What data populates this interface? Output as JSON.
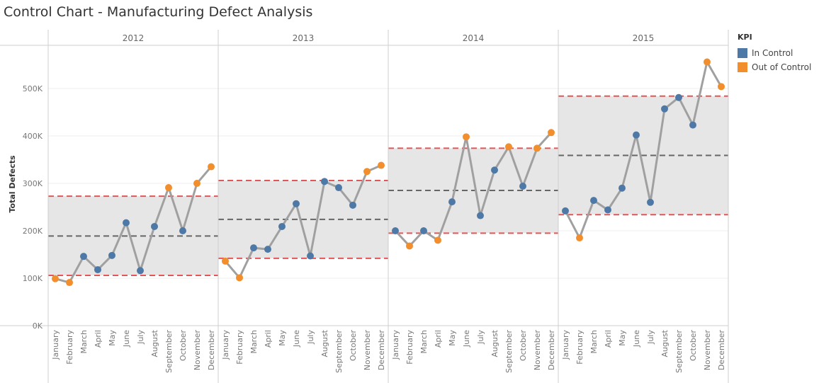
{
  "chart_data": {
    "type": "line",
    "title": "Control Chart - Manufacturing Defect Analysis",
    "ylabel": "Total Defects",
    "ylim": [
      0,
      600000
    ],
    "y_ticks": [
      {
        "value": 0,
        "label": "0K"
      },
      {
        "value": 100000,
        "label": "100K"
      },
      {
        "value": 200000,
        "label": "200K"
      },
      {
        "value": 300000,
        "label": "300K"
      },
      {
        "value": 400000,
        "label": "400K"
      },
      {
        "value": 500000,
        "label": "500K"
      }
    ],
    "months": [
      "January",
      "February",
      "March",
      "April",
      "May",
      "June",
      "July",
      "August",
      "September",
      "October",
      "November",
      "December"
    ],
    "legend": {
      "title": "KPI",
      "position": "right",
      "items": [
        {
          "label": "In Control",
          "color": "#4e79a7"
        },
        {
          "label": "Out of Control",
          "color": "#f28e2b"
        }
      ]
    },
    "line_color": "#a0a0a0",
    "band_color": "#e6e6e6",
    "limit_color": "#e15759",
    "mean_color": "#666666",
    "panels": [
      {
        "year": "2012",
        "mean": 189000,
        "upper": 273000,
        "lower": 106000,
        "values": [
          99000,
          91000,
          146000,
          118000,
          148000,
          217000,
          116000,
          209000,
          291000,
          200000,
          300000,
          335000
        ],
        "status": [
          "Out of Control",
          "Out of Control",
          "In Control",
          "In Control",
          "In Control",
          "In Control",
          "In Control",
          "In Control",
          "Out of Control",
          "In Control",
          "Out of Control",
          "Out of Control"
        ]
      },
      {
        "year": "2013",
        "mean": 224000,
        "upper": 306000,
        "lower": 142000,
        "values": [
          136000,
          101000,
          164000,
          161000,
          209000,
          257000,
          147000,
          304000,
          291000,
          254000,
          325000,
          338000
        ],
        "status": [
          "Out of Control",
          "Out of Control",
          "In Control",
          "In Control",
          "In Control",
          "In Control",
          "In Control",
          "In Control",
          "In Control",
          "In Control",
          "Out of Control",
          "Out of Control"
        ]
      },
      {
        "year": "2014",
        "mean": 285000,
        "upper": 374000,
        "lower": 195000,
        "values": [
          200000,
          168000,
          200000,
          180000,
          261000,
          398000,
          232000,
          328000,
          377000,
          294000,
          374000,
          407000
        ],
        "status": [
          "In Control",
          "Out of Control",
          "In Control",
          "Out of Control",
          "In Control",
          "Out of Control",
          "In Control",
          "In Control",
          "Out of Control",
          "In Control",
          "Out of Control",
          "Out of Control"
        ]
      },
      {
        "year": "2015",
        "mean": 359000,
        "upper": 484000,
        "lower": 234000,
        "values": [
          242000,
          185000,
          264000,
          244000,
          290000,
          402000,
          260000,
          457000,
          481000,
          423000,
          556000,
          504000
        ],
        "status": [
          "In Control",
          "Out of Control",
          "In Control",
          "In Control",
          "In Control",
          "In Control",
          "In Control",
          "In Control",
          "In Control",
          "In Control",
          "Out of Control",
          "Out of Control"
        ]
      }
    ]
  }
}
